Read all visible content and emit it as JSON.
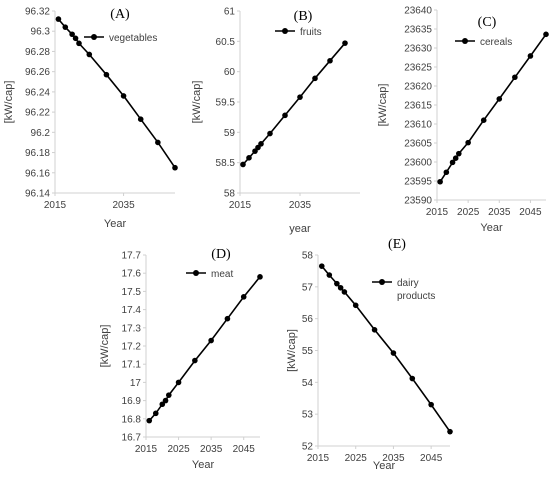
{
  "chart_data": [
    {
      "type": "line",
      "panel_label": "(A)",
      "xlabel": "Year",
      "ylabel": "[kW/cap]",
      "xlim": [
        2015,
        2050
      ],
      "ylim": [
        96.14,
        96.32
      ],
      "xticks": [
        "2015",
        "2035"
      ],
      "yticks": [
        "96.14",
        "96.16",
        "96.18",
        "96.2",
        "96.22",
        "96.24",
        "96.26",
        "96.28",
        "96.3",
        "96.32"
      ],
      "legend": "top-right",
      "series": [
        {
          "name": "vegetables",
          "x": [
            2016,
            2018,
            2020,
            2021,
            2022,
            2025,
            2030,
            2035,
            2040,
            2045,
            2050
          ],
          "y": [
            96.312,
            96.304,
            96.297,
            96.293,
            96.288,
            96.277,
            96.257,
            96.236,
            96.213,
            96.19,
            96.165
          ]
        }
      ]
    },
    {
      "type": "line",
      "panel_label": "(B)",
      "xlabel": "year",
      "ylabel": "[kW/cap]",
      "xlim": [
        2015,
        2055
      ],
      "ylim": [
        58,
        61
      ],
      "xticks": [
        "2015",
        "2035"
      ],
      "yticks": [
        "58",
        "58.5",
        "59",
        "59.5",
        "60",
        "60.5",
        "61"
      ],
      "legend": "top-left",
      "series": [
        {
          "name": "fruits",
          "x": [
            2016,
            2018,
            2020,
            2021,
            2022,
            2025,
            2030,
            2035,
            2040,
            2045,
            2050
          ],
          "y": [
            58.47,
            58.58,
            58.69,
            58.75,
            58.81,
            58.98,
            59.28,
            59.58,
            59.89,
            60.18,
            60.47
          ]
        }
      ]
    },
    {
      "type": "line",
      "panel_label": "(C)",
      "xlabel": "Year",
      "ylabel": "[kW/cap]",
      "xlim": [
        2015,
        2050
      ],
      "ylim": [
        23590,
        23640
      ],
      "xticks": [
        "2015",
        "2025",
        "2035",
        "2045"
      ],
      "yticks": [
        "23590",
        "23595",
        "23600",
        "23605",
        "23610",
        "23615",
        "23620",
        "23625",
        "23630",
        "23635",
        "23640"
      ],
      "legend": "top-left",
      "series": [
        {
          "name": "cereals",
          "x": [
            2016,
            2018,
            2020,
            2021,
            2022,
            2025,
            2030,
            2035,
            2040,
            2045,
            2050
          ],
          "y": [
            23594.8,
            23597.3,
            23599.9,
            23601.0,
            23602.2,
            23605.1,
            23611.0,
            23616.6,
            23622.3,
            23627.9,
            23633.6
          ]
        }
      ]
    },
    {
      "type": "line",
      "panel_label": "(D)",
      "xlabel": "Year",
      "ylabel": "[kW/cap]",
      "xlim": [
        2015,
        2050
      ],
      "ylim": [
        16.7,
        17.7
      ],
      "xticks": [
        "2015",
        "2025",
        "2035",
        "2045"
      ],
      "yticks": [
        "16.7",
        "16.8",
        "16.9",
        "17",
        "17.1",
        "17.2",
        "17.3",
        "17.4",
        "17.5",
        "17.6",
        "17.7"
      ],
      "legend": "top-left",
      "series": [
        {
          "name": "meat",
          "x": [
            2016,
            2018,
            2020,
            2021,
            2022,
            2025,
            2030,
            2035,
            2040,
            2045,
            2050
          ],
          "y": [
            16.79,
            16.83,
            16.88,
            16.9,
            16.93,
            17.0,
            17.12,
            17.23,
            17.35,
            17.47,
            17.58
          ]
        }
      ]
    },
    {
      "type": "line",
      "panel_label": "(E)",
      "xlabel": "Year",
      "ylabel": "[kW/cap]",
      "xlim": [
        2015,
        2050
      ],
      "ylim": [
        52,
        58
      ],
      "xticks": [
        "2015",
        "2025",
        "2035",
        "2045"
      ],
      "yticks": [
        "52",
        "53",
        "54",
        "55",
        "56",
        "57",
        "58"
      ],
      "legend": "top-center",
      "series": [
        {
          "name": "dairy products",
          "x": [
            2016,
            2018,
            2020,
            2021,
            2022,
            2025,
            2030,
            2035,
            2040,
            2045,
            2050
          ],
          "y": [
            57.65,
            57.37,
            57.1,
            56.97,
            56.84,
            56.42,
            55.65,
            54.92,
            54.12,
            53.3,
            52.45
          ]
        }
      ]
    }
  ]
}
